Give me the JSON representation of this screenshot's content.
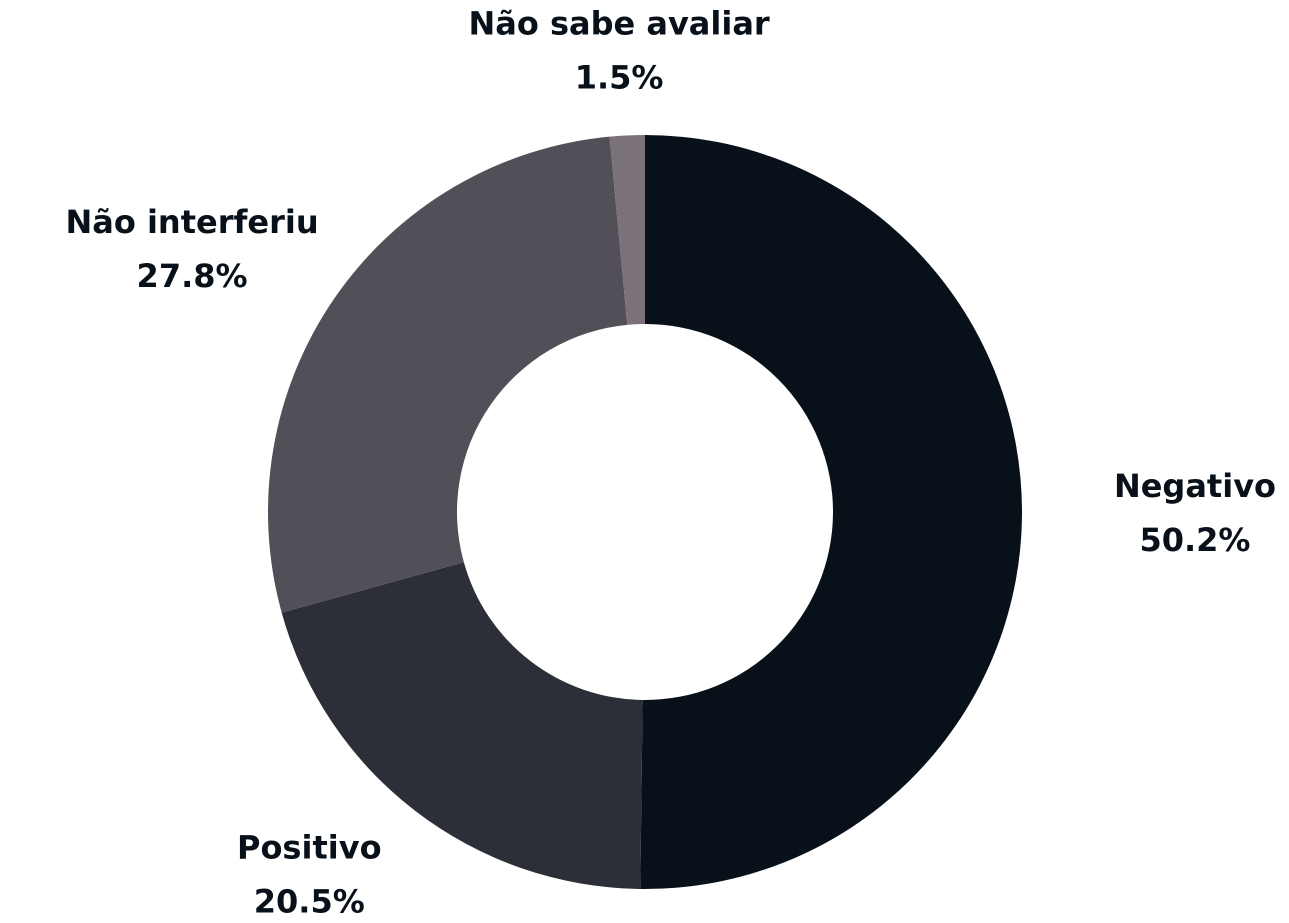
{
  "chart_data": {
    "type": "donut",
    "categories": [
      "Negativo",
      "Positivo",
      "Não interferiu",
      "Não sabe avaliar"
    ],
    "values": [
      50.2,
      20.5,
      27.8,
      1.5
    ],
    "value_labels": [
      "50.2%",
      "20.5%",
      "27.8%",
      "1.5%"
    ],
    "colors": [
      "#08111a",
      "#2d2f38",
      "#524f58",
      "#7a7179"
    ]
  }
}
